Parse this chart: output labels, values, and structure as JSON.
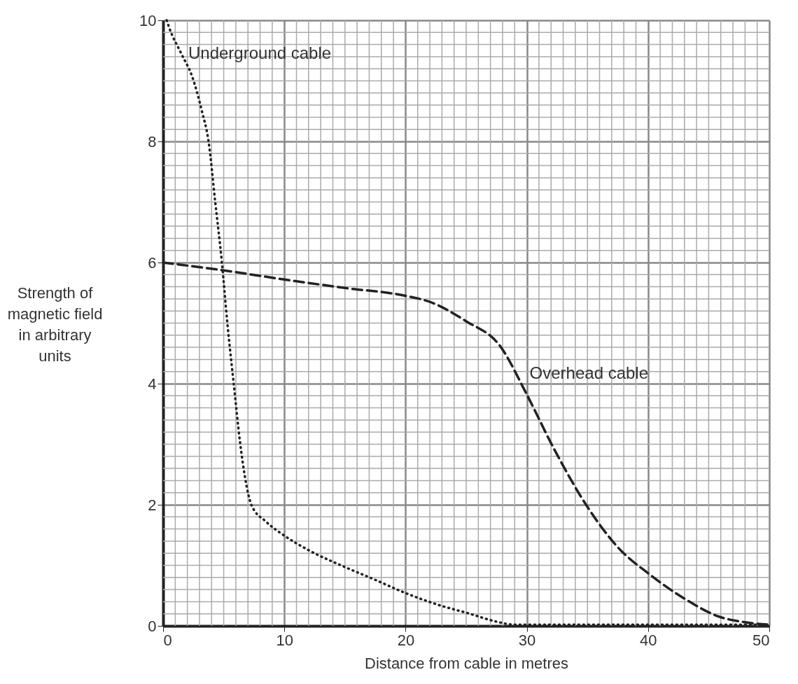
{
  "chart_data": {
    "type": "line",
    "xlabel": "Distance from cable in metres",
    "ylabel": "Strength of magnetic field in arbitrary units",
    "xlim": [
      0,
      50
    ],
    "ylim": [
      0,
      10
    ],
    "xticks": [
      0,
      10,
      20,
      30,
      40,
      50
    ],
    "yticks": [
      0,
      2,
      4,
      6,
      8,
      10
    ],
    "grid": true,
    "marker": "none",
    "series": [
      {
        "name": "Underground cable",
        "color": "#222222",
        "line_style": "dotted",
        "x": [
          0.3,
          0.5,
          1.5,
          2.4,
          3.2,
          3.75,
          4.3,
          4.85,
          5.3,
          5.83,
          6.35,
          6.76,
          7.3,
          8.5,
          9.93,
          12,
          14.9,
          17.5,
          19.9,
          22.5,
          25.3,
          27.5,
          29,
          35,
          40,
          45,
          50
        ],
        "values": [
          10,
          9.88,
          9.45,
          9.07,
          8.5,
          8.0,
          7.0,
          6.0,
          5.0,
          3.99,
          3.03,
          2.45,
          1.99,
          1.72,
          1.5,
          1.25,
          0.98,
          0.76,
          0.55,
          0.36,
          0.2,
          0.07,
          0.02,
          0.02,
          0.02,
          0.02,
          0.02
        ]
      },
      {
        "name": "Overhead cable",
        "color": "#222222",
        "line_style": "dashed",
        "x": [
          0,
          5,
          10,
          15,
          20,
          22,
          25,
          27.8,
          30,
          32.2,
          35.05,
          37.5,
          40.2,
          43,
          45.9,
          48,
          50
        ],
        "values": [
          6.0,
          5.87,
          5.72,
          5.58,
          5.45,
          5.35,
          5.03,
          4.62,
          3.82,
          2.94,
          1.95,
          1.3,
          0.84,
          0.45,
          0.15,
          0.06,
          0.02
        ]
      }
    ]
  }
}
